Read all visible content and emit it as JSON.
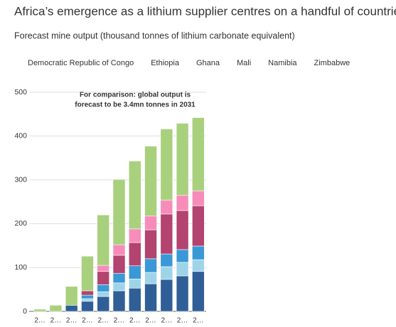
{
  "chart_data": {
    "type": "bar",
    "stacked": true,
    "title": "Africa’s emergence as a lithium supplier centres on a handful of countries",
    "subtitle": "Forecast mine output (thousand tonnes of lithium carbonate equivalent)",
    "annotation": [
      "For comparison: global output is",
      "forecast to be 3.4mn tonnes in 2031"
    ],
    "legend": "top",
    "grid": true,
    "categories": [
      "2…",
      "2…",
      "2…",
      "2…",
      "2…",
      "2…",
      "2…",
      "2…",
      "2…",
      "2…",
      "2…"
    ],
    "series": [
      {
        "name": "Democratic Republic of Congo",
        "color": "#2f5f96",
        "values": [
          0,
          0,
          14,
          23,
          34,
          47,
          53,
          63,
          73,
          81,
          91
        ]
      },
      {
        "name": "Ethiopia",
        "color": "#9fd4e8",
        "values": [
          0,
          0,
          0,
          6,
          11,
          18,
          21,
          26,
          29,
          31,
          27
        ]
      },
      {
        "name": "Ghana",
        "color": "#3a98d6",
        "values": [
          0,
          0,
          0,
          8,
          16,
          22,
          30,
          31,
          29,
          29,
          31
        ]
      },
      {
        "name": "Mali",
        "color": "#b3436f",
        "values": [
          0,
          0,
          0,
          10,
          30,
          41,
          53,
          66,
          91,
          89,
          92
        ]
      },
      {
        "name": "Namibia",
        "color": "#f78cba",
        "values": [
          0,
          0,
          0,
          0,
          14,
          24,
          31,
          32,
          32,
          35,
          34
        ]
      },
      {
        "name": "Zimbabwe",
        "color": "#a9d07c",
        "values": [
          5,
          14,
          43,
          79,
          115,
          149,
          155,
          159,
          162,
          164,
          167
        ]
      }
    ],
    "ylim": [
      0,
      500
    ],
    "yticks": [
      0,
      100,
      200,
      300,
      400,
      500
    ]
  }
}
